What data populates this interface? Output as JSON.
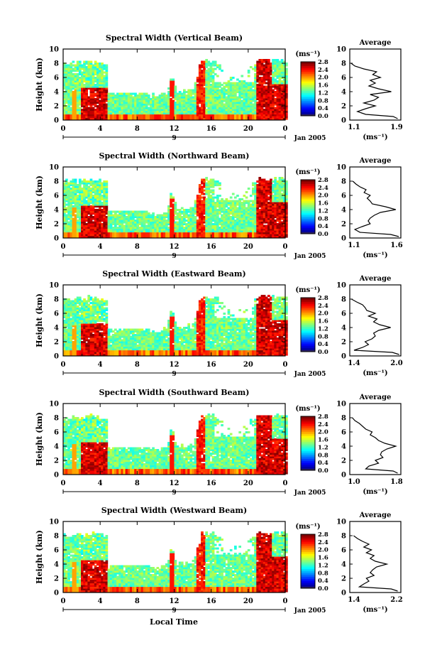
{
  "figure": {
    "xlabel_bottom": "Local Time",
    "date_label": "Jan 2005",
    "day_label": "9"
  },
  "chart_data": [
    {
      "type": "heatmap",
      "title": "Spectral Width (Vertical Beam)",
      "ylabel": "Height (km)",
      "xlabel": "",
      "xlim": [
        0,
        24
      ],
      "ylim": [
        0,
        10
      ],
      "xticks": [
        "0",
        "4",
        "8",
        "12",
        "16",
        "20",
        "0"
      ],
      "yticks": [
        "0",
        "2",
        "4",
        "6",
        "8",
        "10"
      ],
      "colorbar": {
        "label": "(ms⁻¹)",
        "ticks": [
          "0.0",
          "0.4",
          "0.8",
          "1.2",
          "1.6",
          "2.0",
          "2.4",
          "2.8"
        ],
        "range": [
          0,
          2.8
        ]
      },
      "profile": {
        "title": "Average",
        "xlabel": "(ms⁻¹)",
        "xticks": [
          "1.1",
          "1.9"
        ],
        "xlim": [
          1.1,
          1.9
        ],
        "yticks": [
          "0",
          "2",
          "4",
          "6",
          "8",
          "10"
        ],
        "heights": [
          0.2,
          0.5,
          0.8,
          1.2,
          1.6,
          2.0,
          2.4,
          2.8,
          3.2,
          3.6,
          4.0,
          4.4,
          4.8,
          5.2,
          5.6,
          6.0,
          6.4,
          6.8,
          7.2,
          7.6,
          8.0
        ],
        "values": [
          1.85,
          1.78,
          1.35,
          1.22,
          1.35,
          1.5,
          1.32,
          1.48,
          1.55,
          1.42,
          1.75,
          1.55,
          1.4,
          1.5,
          1.42,
          1.58,
          1.46,
          1.52,
          1.32,
          1.18,
          1.12
        ]
      }
    },
    {
      "type": "heatmap",
      "title": "Spectral Width (Northward Beam)",
      "ylabel": "Height (km)",
      "xlabel": "",
      "xlim": [
        0,
        24
      ],
      "ylim": [
        0,
        10
      ],
      "xticks": [
        "0",
        "4",
        "8",
        "12",
        "16",
        "20",
        "0"
      ],
      "yticks": [
        "0",
        "2",
        "4",
        "6",
        "8",
        "10"
      ],
      "colorbar": {
        "label": "(ms⁻¹)",
        "ticks": [
          "0.0",
          "0.4",
          "0.8",
          "1.2",
          "1.6",
          "2.0",
          "2.4",
          "2.8"
        ],
        "range": [
          0,
          2.8
        ]
      },
      "profile": {
        "title": "Average",
        "xlabel": "(ms⁻¹)",
        "xticks": [
          "1.1",
          "1.6"
        ],
        "xlim": [
          1.1,
          1.6
        ],
        "yticks": [
          "0",
          "2",
          "4",
          "6",
          "8",
          "10"
        ],
        "heights": [
          0.2,
          0.5,
          0.8,
          1.2,
          1.6,
          2.0,
          2.4,
          2.8,
          3.2,
          3.6,
          4.0,
          4.4,
          4.8,
          5.2,
          5.6,
          6.0,
          6.4,
          6.8,
          7.2,
          7.6,
          8.0
        ],
        "values": [
          1.58,
          1.5,
          1.2,
          1.15,
          1.22,
          1.3,
          1.28,
          1.3,
          1.34,
          1.4,
          1.55,
          1.45,
          1.32,
          1.3,
          1.27,
          1.3,
          1.24,
          1.26,
          1.2,
          1.16,
          1.13
        ]
      }
    },
    {
      "type": "heatmap",
      "title": "Spectral Width (Eastward Beam)",
      "ylabel": "Height (km)",
      "xlabel": "",
      "xlim": [
        0,
        24
      ],
      "ylim": [
        0,
        10
      ],
      "xticks": [
        "0",
        "4",
        "8",
        "12",
        "16",
        "20",
        "0"
      ],
      "yticks": [
        "0",
        "2",
        "4",
        "6",
        "8",
        "10"
      ],
      "colorbar": {
        "label": "(ms⁻¹)",
        "ticks": [
          "0.0",
          "0.4",
          "0.8",
          "1.2",
          "1.6",
          "2.0",
          "2.4",
          "2.8"
        ],
        "range": [
          0,
          2.8
        ]
      },
      "profile": {
        "title": "Average",
        "xlabel": "(ms⁻¹)",
        "xticks": [
          "1.4",
          "2.0"
        ],
        "xlim": [
          1.4,
          2.0
        ],
        "yticks": [
          "0",
          "2",
          "4",
          "6",
          "8",
          "10"
        ],
        "heights": [
          0.2,
          0.5,
          0.8,
          1.2,
          1.6,
          2.0,
          2.4,
          2.8,
          3.2,
          3.6,
          4.0,
          4.4,
          4.8,
          5.2,
          5.6,
          6.0,
          6.4,
          6.8,
          7.2,
          7.6,
          8.0
        ],
        "values": [
          1.98,
          1.9,
          1.45,
          1.55,
          1.62,
          1.58,
          1.66,
          1.7,
          1.68,
          1.74,
          1.88,
          1.75,
          1.68,
          1.72,
          1.62,
          1.7,
          1.6,
          1.58,
          1.55,
          1.48,
          1.42
        ]
      }
    },
    {
      "type": "heatmap",
      "title": "Spectral Width (Southward Beam)",
      "ylabel": "Height (km)",
      "xlabel": "",
      "xlim": [
        0,
        24
      ],
      "ylim": [
        0,
        10
      ],
      "xticks": [
        "0",
        "4",
        "8",
        "12",
        "16",
        "20",
        "0"
      ],
      "yticks": [
        "0",
        "2",
        "4",
        "6",
        "8",
        "10"
      ],
      "colorbar": {
        "label": "(ms⁻¹)",
        "ticks": [
          "0.0",
          "0.4",
          "0.8",
          "1.2",
          "1.6",
          "2.0",
          "2.4",
          "2.8"
        ],
        "range": [
          0,
          2.8
        ]
      },
      "profile": {
        "title": "Average",
        "xlabel": "(ms⁻¹)",
        "xticks": [
          "1.0",
          "1.8"
        ],
        "xlim": [
          1.0,
          1.8
        ],
        "yticks": [
          "0",
          "2",
          "4",
          "6",
          "8",
          "10"
        ],
        "heights": [
          0.2,
          0.5,
          0.8,
          1.2,
          1.6,
          2.0,
          2.4,
          2.8,
          3.2,
          3.6,
          4.0,
          4.4,
          4.8,
          5.2,
          5.6,
          6.0,
          6.4,
          6.8,
          7.2,
          7.6,
          8.0
        ],
        "values": [
          1.75,
          1.68,
          1.25,
          1.3,
          1.45,
          1.4,
          1.52,
          1.48,
          1.5,
          1.58,
          1.72,
          1.55,
          1.45,
          1.4,
          1.32,
          1.35,
          1.25,
          1.2,
          1.15,
          1.08,
          1.04
        ]
      }
    },
    {
      "type": "heatmap",
      "title": "Spectral Width (Westward Beam)",
      "ylabel": "Height (km)",
      "xlabel": "",
      "xlim": [
        0,
        24
      ],
      "ylim": [
        0,
        10
      ],
      "xticks": [
        "0",
        "4",
        "8",
        "12",
        "16",
        "20",
        "0"
      ],
      "yticks": [
        "0",
        "2",
        "4",
        "6",
        "8",
        "10"
      ],
      "colorbar": {
        "label": "(ms⁻¹)",
        "ticks": [
          "0.0",
          "0.4",
          "0.8",
          "1.2",
          "1.6",
          "2.0",
          "2.4",
          "2.8"
        ],
        "range": [
          0,
          2.8
        ]
      },
      "profile": {
        "title": "Average",
        "xlabel": "(ms⁻¹)",
        "xticks": [
          "1.4",
          "2.2"
        ],
        "xlim": [
          1.4,
          2.2
        ],
        "yticks": [
          "0",
          "2",
          "4",
          "6",
          "8",
          "10"
        ],
        "heights": [
          0.2,
          0.5,
          0.8,
          1.2,
          1.6,
          2.0,
          2.4,
          2.8,
          3.2,
          3.6,
          4.0,
          4.4,
          4.8,
          5.2,
          5.6,
          6.0,
          6.4,
          6.8,
          7.2,
          7.6,
          8.0
        ],
        "values": [
          2.15,
          2.05,
          1.55,
          1.62,
          1.7,
          1.66,
          1.78,
          1.72,
          1.76,
          1.82,
          1.98,
          1.8,
          1.72,
          1.78,
          1.66,
          1.74,
          1.62,
          1.7,
          1.6,
          1.52,
          1.46
        ]
      }
    }
  ]
}
